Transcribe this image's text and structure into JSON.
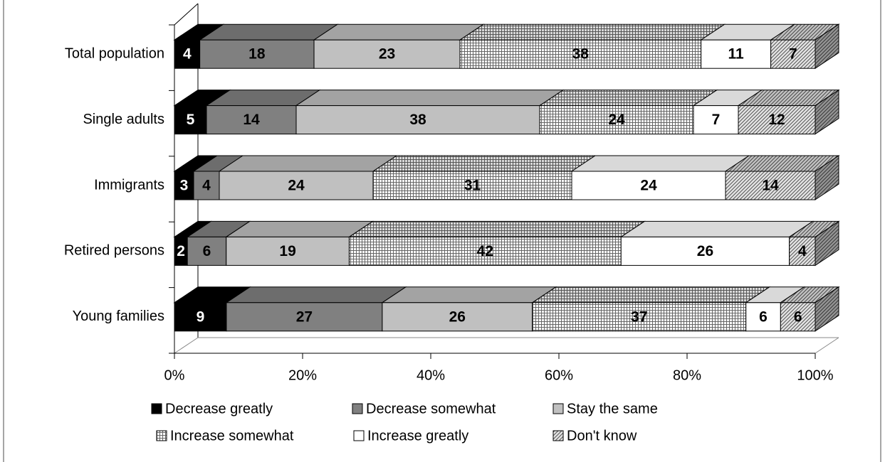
{
  "chart_data": {
    "type": "bar3d",
    "orientation": "horizontal",
    "stacking": "percent",
    "categories": [
      "Total population",
      "Single adults",
      "Immigrants",
      "Retired persons",
      "Young families"
    ],
    "series": [
      {
        "name": "Decrease greatly",
        "color": "#000000",
        "values": [
          4,
          5,
          3,
          2,
          9
        ]
      },
      {
        "name": "Decrease somewhat",
        "color": "#808080",
        "values": [
          18,
          14,
          4,
          6,
          27
        ]
      },
      {
        "name": "Stay the same",
        "color": "#c0c0c0",
        "values": [
          23,
          38,
          24,
          19,
          26
        ]
      },
      {
        "name": "Increase somewhat",
        "color": "#ffffff",
        "pattern": "grid",
        "values": [
          38,
          24,
          31,
          42,
          37
        ]
      },
      {
        "name": "Increase greatly",
        "color": "#ffffff",
        "values": [
          11,
          7,
          24,
          26,
          6
        ]
      },
      {
        "name": "Don't know",
        "color": "#d8d8d8",
        "pattern": "diagonal",
        "values": [
          7,
          12,
          14,
          4,
          6
        ]
      }
    ],
    "xlim": [
      0,
      100
    ],
    "xticks": [
      {
        "value": 0,
        "label": "0%"
      },
      {
        "value": 20,
        "label": "20%"
      },
      {
        "value": 40,
        "label": "40%"
      },
      {
        "value": 60,
        "label": "60%"
      },
      {
        "value": 80,
        "label": "80%"
      },
      {
        "value": 100,
        "label": "100%"
      }
    ],
    "legend": "bottom"
  }
}
